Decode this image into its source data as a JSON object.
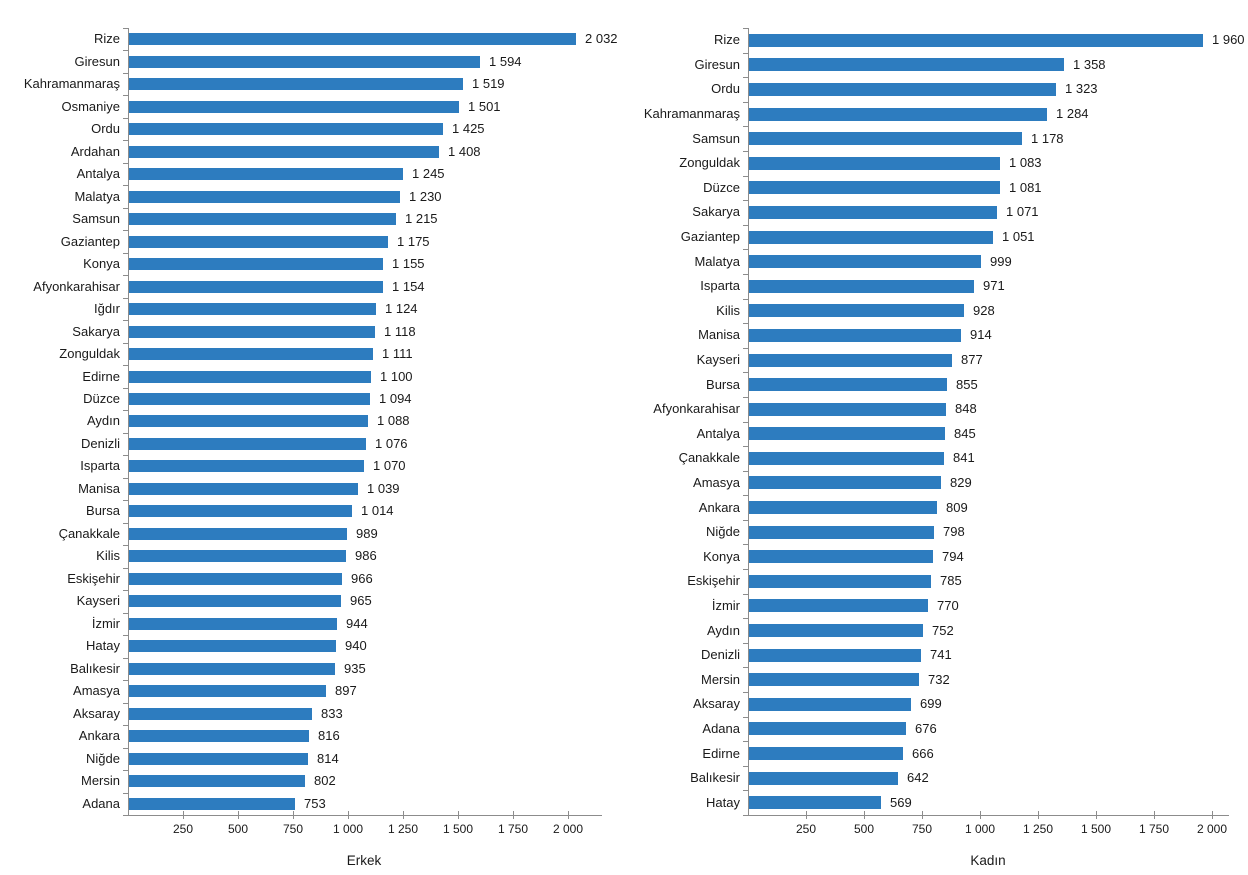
{
  "page": {
    "background": "#ffffff",
    "text_color": "#1a1a1a",
    "axis_color": "#8c8c8c"
  },
  "number_format": "space-thousands",
  "chart_data": [
    {
      "type": "bar",
      "orientation": "horizontal",
      "title": "",
      "xlabel": "Erkek",
      "ylabel": "",
      "bar_color": "#2d7cbf",
      "grid": false,
      "legend": false,
      "xlim": [
        0,
        2150
      ],
      "xticks": [
        250,
        500,
        750,
        1000,
        1250,
        1500,
        1750,
        2000
      ],
      "categories": [
        "Rize",
        "Giresun",
        "Kahramanmaraş",
        "Osmaniye",
        "Ordu",
        "Ardahan",
        "Antalya",
        "Malatya",
        "Samsun",
        "Gaziantep",
        "Konya",
        "Afyonkarahisar",
        "Iğdır",
        "Sakarya",
        "Zonguldak",
        "Edirne",
        "Düzce",
        "Aydın",
        "Denizli",
        "Isparta",
        "Manisa",
        "Bursa",
        "Çanakkale",
        "Kilis",
        "Eskişehir",
        "Kayseri",
        "İzmir",
        "Hatay",
        "Balıkesir",
        "Amasya",
        "Aksaray",
        "Ankara",
        "Niğde",
        "Mersin",
        "Adana"
      ],
      "values": [
        2032,
        1594,
        1519,
        1501,
        1425,
        1408,
        1245,
        1230,
        1215,
        1175,
        1155,
        1154,
        1124,
        1118,
        1111,
        1100,
        1094,
        1088,
        1076,
        1070,
        1039,
        1014,
        989,
        986,
        966,
        965,
        944,
        940,
        935,
        897,
        833,
        816,
        814,
        802,
        753
      ]
    },
    {
      "type": "bar",
      "orientation": "horizontal",
      "title": "",
      "xlabel": "Kadın",
      "ylabel": "",
      "bar_color": "#2d7cbf",
      "grid": false,
      "legend": false,
      "xlim": [
        0,
        2070
      ],
      "xticks": [
        250,
        500,
        750,
        1000,
        1250,
        1500,
        1750,
        2000
      ],
      "categories": [
        "Rize",
        "Giresun",
        "Ordu",
        "Kahramanmaraş",
        "Samsun",
        "Zonguldak",
        "Düzce",
        "Sakarya",
        "Gaziantep",
        "Malatya",
        "Isparta",
        "Kilis",
        "Manisa",
        "Kayseri",
        "Bursa",
        "Afyonkarahisar",
        "Antalya",
        "Çanakkale",
        "Amasya",
        "Ankara",
        "Niğde",
        "Konya",
        "Eskişehir",
        "İzmir",
        "Aydın",
        "Denizli",
        "Mersin",
        "Aksaray",
        "Adana",
        "Edirne",
        "Balıkesir",
        "Hatay"
      ],
      "values": [
        1960,
        1358,
        1323,
        1284,
        1178,
        1083,
        1081,
        1071,
        1051,
        999,
        971,
        928,
        914,
        877,
        855,
        848,
        845,
        841,
        829,
        809,
        798,
        794,
        785,
        770,
        752,
        741,
        732,
        699,
        676,
        666,
        642,
        569
      ]
    }
  ]
}
